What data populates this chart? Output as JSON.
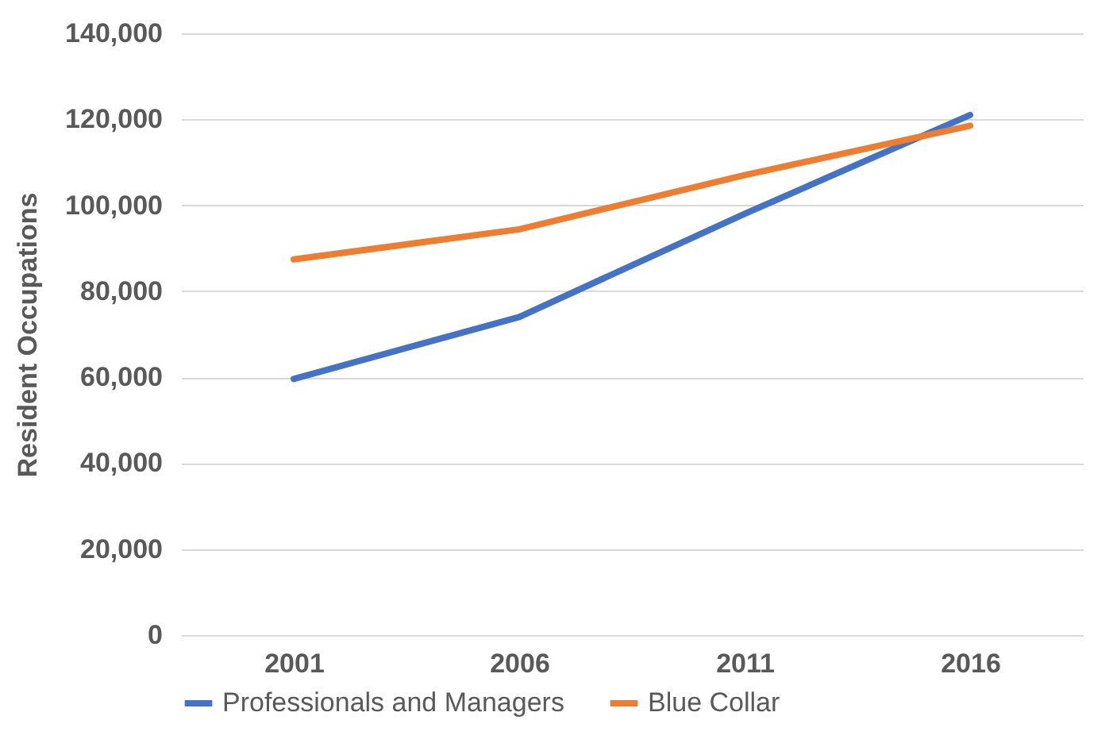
{
  "chart_data": {
    "type": "line",
    "ylabel": "Resident Occupations",
    "categories": [
      "2001",
      "2006",
      "2011",
      "2016"
    ],
    "series": [
      {
        "name": "Professionals and Managers",
        "color": "#4472c4",
        "values": [
          59600,
          74000,
          98000,
          121000
        ]
      },
      {
        "name": "Blue Collar",
        "color": "#ed7d31",
        "values": [
          87400,
          94400,
          107000,
          118500
        ]
      }
    ],
    "ylim": [
      0,
      140000
    ],
    "yticks": [
      0,
      {
        "value": 20000,
        "label": "20,000"
      },
      {
        "value": 40000,
        "label": "40,000"
      },
      {
        "value": 60000,
        "label": "60,000"
      },
      {
        "value": 80000,
        "label": "80,000"
      },
      {
        "value": 100000,
        "label": "100,000"
      },
      {
        "value": 120000,
        "label": "120,000"
      },
      {
        "value": 140000,
        "label": "140,000"
      }
    ],
    "grid": "y",
    "legend": "bottom",
    "marker": "none",
    "line_style": "solid"
  }
}
